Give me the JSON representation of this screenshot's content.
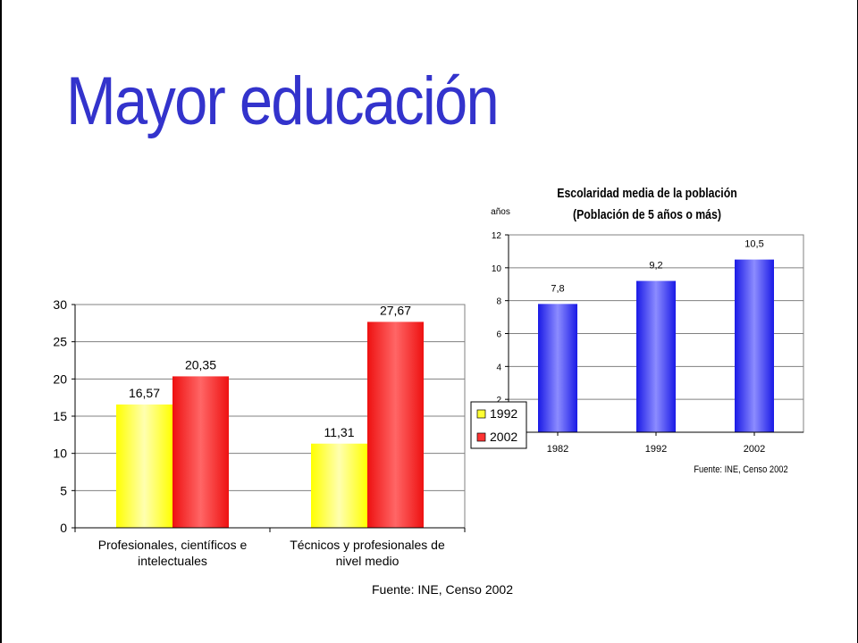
{
  "title": "Mayor educación",
  "chart_data": [
    {
      "type": "bar",
      "categories": [
        "Profesionales, científicos e intelectuales",
        "Técnicos y profesionales de nivel medio"
      ],
      "category_lines": [
        [
          "Profesionales, científicos e",
          "intelectuales"
        ],
        [
          "Técnicos y profesionales de",
          "nivel medio"
        ]
      ],
      "series": [
        {
          "name": "1992",
          "values": [
            16.57,
            11.31
          ],
          "labels": [
            "16,57",
            "11,31"
          ],
          "color": "#ffff33"
        },
        {
          "name": "2002",
          "values": [
            20.35,
            27.67
          ],
          "labels": [
            "20,35",
            "27,67"
          ],
          "color": "#ff3333"
        }
      ],
      "ylim": [
        0,
        30
      ],
      "yticks": [
        "0",
        "5",
        "10",
        "15",
        "20",
        "25",
        "30"
      ],
      "grid": true,
      "legend": "right",
      "source": "Fuente: INE, Censo 2002"
    },
    {
      "type": "bar",
      "title": "Escolaridad media de la población",
      "subtitle": "(Población de 5 años o más)",
      "ylabel": "años",
      "categories": [
        "1982",
        "1992",
        "2002"
      ],
      "values": [
        7.8,
        9.2,
        10.5
      ],
      "labels": [
        "7,8",
        "9,2",
        "10,5"
      ],
      "color": "#2222ee",
      "ylim": [
        0,
        12
      ],
      "yticks": [
        "0",
        "2",
        "4",
        "6",
        "8",
        "10",
        "12"
      ],
      "grid": true,
      "source": "Fuente: INE, Censo 2002"
    }
  ]
}
